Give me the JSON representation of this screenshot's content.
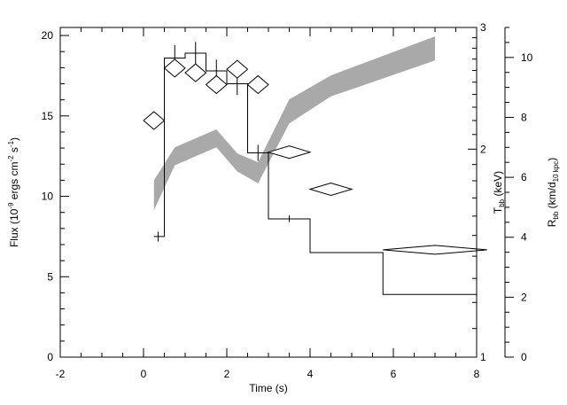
{
  "chart_data": {
    "type": "line",
    "xlabel": "Time (s)",
    "xlim": [
      -2,
      8
    ],
    "x_ticks": [
      "-2",
      "0",
      "2",
      "4",
      "6",
      "8"
    ],
    "y_axes": {
      "left": {
        "label_main": "Flux (10",
        "label_exp1": "-9",
        "label_mid": " ergs cm",
        "label_exp2": "-2",
        "label_s": " s",
        "label_exp3": "-1",
        "label_end": ")",
        "ylim": [
          0,
          20.5
        ],
        "ticks": [
          "0",
          "5",
          "10",
          "15",
          "20"
        ]
      },
      "tbb": {
        "label_main": "T",
        "label_sub": "bb",
        "label_end": " (keV)",
        "scale": "log",
        "ylim": [
          1,
          3
        ],
        "ticks": [
          "1",
          "2",
          "3"
        ]
      },
      "rbb": {
        "label_main": "R",
        "label_sub1": "bb",
        "label_mid": " (km/d",
        "label_sub2": "10 kpc",
        "label_end": ")",
        "ylim": [
          0,
          11
        ],
        "ticks": [
          "0",
          "2",
          "4",
          "6",
          "8",
          "10"
        ]
      }
    },
    "series": [
      {
        "style": "histogram",
        "edges": [
          0.25,
          0.5,
          1.0,
          1.5,
          2.0,
          2.5,
          3.0,
          4.0,
          5.75,
          8.0
        ],
        "values": [
          7.5,
          18.6,
          18.9,
          17.8,
          17.0,
          12.7,
          8.6,
          6.5,
          3.9
        ],
        "err_x": [
          0.35,
          0.75,
          1.25,
          1.75,
          2.25,
          2.75,
          3.5
        ],
        "err_lo": [
          7.2,
          17.9,
          18.2,
          17.2,
          16.3,
          12.2,
          8.4
        ],
        "err_hi": [
          7.8,
          19.4,
          19.6,
          18.5,
          17.6,
          13.2,
          8.8
        ]
      },
      {
        "style": "diamond",
        "axis": "tbb",
        "x": [
          0.25,
          0.75,
          1.25,
          1.75,
          2.25,
          2.75,
          3.5,
          4.5,
          7.0
        ],
        "y": [
          2.2,
          2.62,
          2.58,
          2.48,
          2.61,
          2.48,
          1.98,
          1.75,
          1.43
        ],
        "xerr": [
          0.25,
          0.25,
          0.25,
          0.25,
          0.25,
          0.25,
          0.5,
          0.5,
          1.25
        ]
      },
      {
        "style": "band",
        "axis": "rbb",
        "x": [
          0.25,
          0.75,
          1.25,
          1.75,
          2.25,
          2.75,
          3.5,
          4.5,
          7.0
        ],
        "lower": [
          4.9,
          6.4,
          6.7,
          7.0,
          6.2,
          5.8,
          7.8,
          8.7,
          9.9
        ],
        "upper": [
          5.9,
          7.0,
          7.3,
          7.6,
          6.8,
          6.5,
          8.6,
          9.4,
          10.7
        ]
      }
    ]
  }
}
